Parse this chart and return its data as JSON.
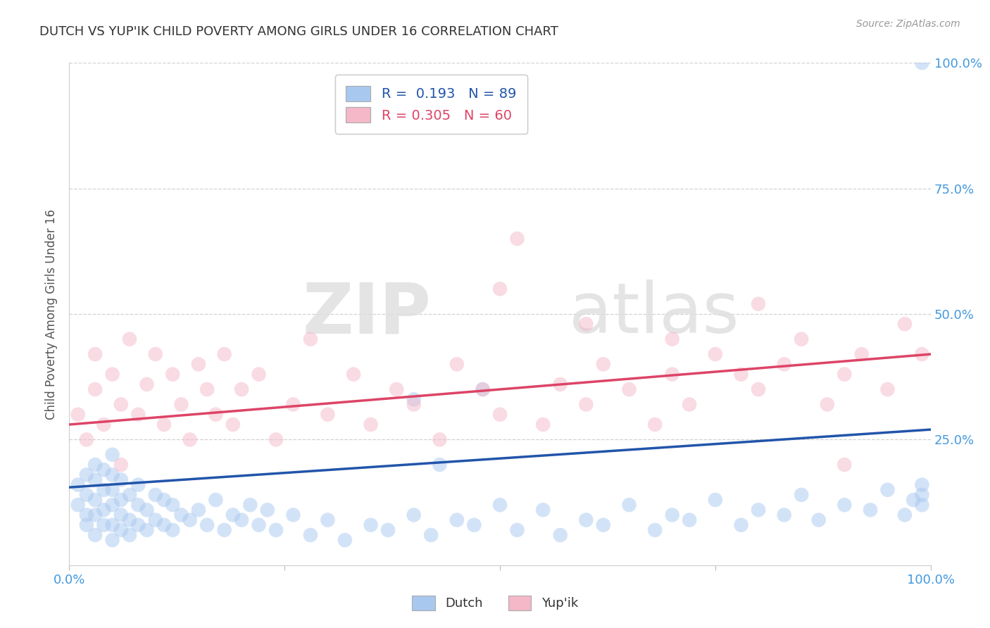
{
  "title": "DUTCH VS YUP'IK CHILD POVERTY AMONG GIRLS UNDER 16 CORRELATION CHART",
  "source": "Source: ZipAtlas.com",
  "ylabel": "Child Poverty Among Girls Under 16",
  "xlim": [
    0,
    1.0
  ],
  "ylim": [
    0,
    1.0
  ],
  "xticks": [
    0.0,
    0.25,
    0.5,
    0.75,
    1.0
  ],
  "yticks": [
    0.0,
    0.25,
    0.5,
    0.75,
    1.0
  ],
  "xticklabels": [
    "0.0%",
    "",
    "",
    "",
    "100.0%"
  ],
  "yticklabels_right": [
    "",
    "25.0%",
    "50.0%",
    "75.0%",
    "100.0%"
  ],
  "dutch_R": "0.193",
  "dutch_N": "89",
  "yupik_R": "0.305",
  "yupik_N": "60",
  "dutch_color": "#a8c8f0",
  "yupik_color": "#f4b8c8",
  "dutch_line_color": "#2255aa",
  "yupik_line_color": "#dd4466",
  "background_color": "#ffffff",
  "grid_color": "#cccccc",
  "title_color": "#333333",
  "tick_label_color": "#4499dd",
  "watermark": "ZIPatlas",
  "dutch_x": [
    0.01,
    0.01,
    0.02,
    0.02,
    0.02,
    0.02,
    0.03,
    0.03,
    0.03,
    0.03,
    0.03,
    0.04,
    0.04,
    0.04,
    0.04,
    0.05,
    0.05,
    0.05,
    0.05,
    0.05,
    0.05,
    0.06,
    0.06,
    0.06,
    0.06,
    0.07,
    0.07,
    0.07,
    0.08,
    0.08,
    0.08,
    0.09,
    0.09,
    0.1,
    0.1,
    0.11,
    0.11,
    0.12,
    0.12,
    0.13,
    0.14,
    0.15,
    0.16,
    0.17,
    0.18,
    0.19,
    0.2,
    0.21,
    0.22,
    0.23,
    0.24,
    0.26,
    0.28,
    0.3,
    0.32,
    0.35,
    0.37,
    0.4,
    0.42,
    0.45,
    0.47,
    0.5,
    0.52,
    0.55,
    0.57,
    0.6,
    0.62,
    0.65,
    0.68,
    0.7,
    0.72,
    0.75,
    0.78,
    0.8,
    0.83,
    0.85,
    0.87,
    0.9,
    0.93,
    0.95,
    0.97,
    0.98,
    0.99,
    0.99,
    0.99,
    0.4,
    0.43,
    0.48,
    0.99
  ],
  "dutch_y": [
    0.12,
    0.16,
    0.1,
    0.14,
    0.08,
    0.18,
    0.06,
    0.1,
    0.13,
    0.17,
    0.2,
    0.08,
    0.11,
    0.15,
    0.19,
    0.05,
    0.08,
    0.12,
    0.15,
    0.18,
    0.22,
    0.07,
    0.1,
    0.13,
    0.17,
    0.06,
    0.09,
    0.14,
    0.08,
    0.12,
    0.16,
    0.07,
    0.11,
    0.09,
    0.14,
    0.08,
    0.13,
    0.07,
    0.12,
    0.1,
    0.09,
    0.11,
    0.08,
    0.13,
    0.07,
    0.1,
    0.09,
    0.12,
    0.08,
    0.11,
    0.07,
    0.1,
    0.06,
    0.09,
    0.05,
    0.08,
    0.07,
    0.1,
    0.06,
    0.09,
    0.08,
    0.12,
    0.07,
    0.11,
    0.06,
    0.09,
    0.08,
    0.12,
    0.07,
    0.1,
    0.09,
    0.13,
    0.08,
    0.11,
    0.1,
    0.14,
    0.09,
    0.12,
    0.11,
    0.15,
    0.1,
    0.13,
    0.12,
    0.16,
    0.14,
    0.33,
    0.2,
    0.35,
    1.0
  ],
  "yupik_x": [
    0.01,
    0.02,
    0.03,
    0.03,
    0.04,
    0.05,
    0.06,
    0.06,
    0.07,
    0.08,
    0.09,
    0.1,
    0.11,
    0.12,
    0.13,
    0.14,
    0.15,
    0.16,
    0.17,
    0.18,
    0.19,
    0.2,
    0.22,
    0.24,
    0.26,
    0.28,
    0.3,
    0.33,
    0.35,
    0.38,
    0.4,
    0.43,
    0.45,
    0.48,
    0.5,
    0.52,
    0.55,
    0.57,
    0.6,
    0.62,
    0.65,
    0.68,
    0.7,
    0.72,
    0.75,
    0.78,
    0.8,
    0.83,
    0.85,
    0.88,
    0.9,
    0.92,
    0.95,
    0.97,
    0.99,
    0.5,
    0.6,
    0.7,
    0.8,
    0.9
  ],
  "yupik_y": [
    0.3,
    0.25,
    0.42,
    0.35,
    0.28,
    0.38,
    0.32,
    0.2,
    0.45,
    0.3,
    0.36,
    0.42,
    0.28,
    0.38,
    0.32,
    0.25,
    0.4,
    0.35,
    0.3,
    0.42,
    0.28,
    0.35,
    0.38,
    0.25,
    0.32,
    0.45,
    0.3,
    0.38,
    0.28,
    0.35,
    0.32,
    0.25,
    0.4,
    0.35,
    0.3,
    0.65,
    0.28,
    0.36,
    0.32,
    0.4,
    0.35,
    0.28,
    0.38,
    0.32,
    0.42,
    0.38,
    0.35,
    0.4,
    0.45,
    0.32,
    0.38,
    0.42,
    0.35,
    0.48,
    0.42,
    0.55,
    0.48,
    0.45,
    0.52,
    0.2
  ],
  "dutch_trendline": [
    0.155,
    0.27
  ],
  "yupik_trendline": [
    0.28,
    0.42
  ]
}
